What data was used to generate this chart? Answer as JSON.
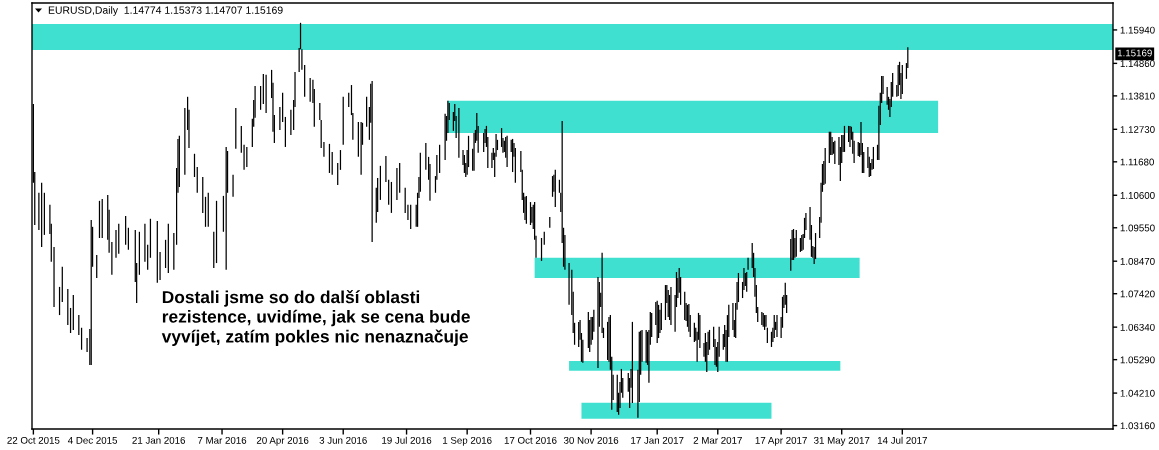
{
  "chart_data": {
    "type": "bar",
    "title": "EURUSD,Daily  1.14774 1.15373 1.14707 1.15169",
    "annotations": [
      "Dostali jsme so do další oblasti\nrezistence, uvidíme, jak se cena bude\nvyvíjet, zatím pokles nic nenaznačuje",
      {
        "text": "1.15169",
        "y": 1.15169
      }
    ],
    "x": [
      "2015-10-22",
      "2015-10-23",
      "2015-10-26",
      "2015-10-28",
      "2015-10-30",
      "2015-11-03",
      "2015-11-04",
      "2015-11-06",
      "2015-11-10",
      "2015-11-12",
      "2015-11-16",
      "2015-11-18",
      "2015-11-20",
      "2015-11-24",
      "2015-11-26",
      "2015-11-30",
      "2015-12-02",
      "2015-12-03",
      "2015-12-04",
      "2015-12-07",
      "2015-12-09",
      "2015-12-11",
      "2015-12-15",
      "2015-12-16",
      "2015-12-18",
      "2015-12-21",
      "2015-12-23",
      "2015-12-28",
      "2015-12-30",
      "2016-01-04",
      "2016-01-05",
      "2016-01-07",
      "2016-01-11",
      "2016-01-13",
      "2016-01-15",
      "2016-01-20",
      "2016-01-22",
      "2016-01-26",
      "2016-01-28",
      "2016-02-01",
      "2016-02-03",
      "2016-02-04",
      "2016-02-05",
      "2016-02-09",
      "2016-02-11",
      "2016-02-12",
      "2016-02-16",
      "2016-02-18",
      "2016-02-22",
      "2016-02-24",
      "2016-02-26",
      "2016-03-01",
      "2016-03-03",
      "2016-03-08",
      "2016-03-10",
      "2016-03-11",
      "2016-03-15",
      "2016-03-17",
      "2016-03-21",
      "2016-03-23",
      "2016-03-25",
      "2016-03-29",
      "2016-03-30",
      "2016-03-31",
      "2016-04-04",
      "2016-04-06",
      "2016-04-08",
      "2016-04-12",
      "2016-04-13",
      "2016-04-14",
      "2016-04-18",
      "2016-04-20",
      "2016-04-22",
      "2016-04-26",
      "2016-04-28",
      "2016-04-29",
      "2016-05-02",
      "2016-05-03",
      "2016-05-04",
      "2016-05-06",
      "2016-05-10",
      "2016-05-12",
      "2016-05-13",
      "2016-05-17",
      "2016-05-18",
      "2016-05-20",
      "2016-05-24",
      "2016-05-26",
      "2016-05-30",
      "2016-06-01",
      "2016-06-03",
      "2016-06-07",
      "2016-06-09",
      "2016-06-10",
      "2016-06-14",
      "2016-06-16",
      "2016-06-17",
      "2016-06-20",
      "2016-06-22",
      "2016-06-23",
      "2016-06-24",
      "2016-06-27",
      "2016-06-28",
      "2016-06-30",
      "2016-07-04",
      "2016-07-06",
      "2016-07-08",
      "2016-07-12",
      "2016-07-14",
      "2016-07-18",
      "2016-07-20",
      "2016-07-22",
      "2016-07-26",
      "2016-07-27",
      "2016-07-28",
      "2016-07-29",
      "2016-08-02",
      "2016-08-04",
      "2016-08-05",
      "2016-08-09",
      "2016-08-10",
      "2016-08-12",
      "2016-08-16",
      "2016-08-17",
      "2016-08-18",
      "2016-08-19",
      "2016-08-22",
      "2016-08-23",
      "2016-08-24",
      "2016-08-26",
      "2016-08-29",
      "2016-08-30",
      "2016-08-31",
      "2016-09-01",
      "2016-09-02",
      "2016-09-05",
      "2016-09-06",
      "2016-09-07",
      "2016-09-08",
      "2016-09-09",
      "2016-09-13",
      "2016-09-14",
      "2016-09-15",
      "2016-09-16",
      "2016-09-19",
      "2016-09-20",
      "2016-09-21",
      "2016-09-22",
      "2016-09-23",
      "2016-09-26",
      "2016-09-27",
      "2016-09-28",
      "2016-09-29",
      "2016-09-30",
      "2016-10-03",
      "2016-10-04",
      "2016-10-05",
      "2016-10-06",
      "2016-10-10",
      "2016-10-11",
      "2016-10-12",
      "2016-10-13",
      "2016-10-14",
      "2016-10-17",
      "2016-10-18",
      "2016-10-19",
      "2016-10-20",
      "2016-10-21",
      "2016-10-25",
      "2016-10-27",
      "2016-10-31",
      "2016-11-02",
      "2016-11-03",
      "2016-11-04",
      "2016-11-07",
      "2016-11-08",
      "2016-11-09",
      "2016-11-10",
      "2016-11-11",
      "2016-11-14",
      "2016-11-16",
      "2016-11-17",
      "2016-11-18",
      "2016-11-21",
      "2016-11-22",
      "2016-11-23",
      "2016-11-24",
      "2016-11-28",
      "2016-11-29",
      "2016-11-30",
      "2016-12-01",
      "2016-12-02",
      "2016-12-05",
      "2016-12-06",
      "2016-12-07",
      "2016-12-08",
      "2016-12-09",
      "2016-12-12",
      "2016-12-13",
      "2016-12-14",
      "2016-12-15",
      "2016-12-16",
      "2016-12-19",
      "2016-12-20",
      "2016-12-21",
      "2016-12-22",
      "2016-12-23",
      "2016-12-27",
      "2016-12-28",
      "2016-12-29",
      "2016-12-30",
      "2017-01-03",
      "2017-01-04",
      "2017-01-05",
      "2017-01-06",
      "2017-01-09",
      "2017-01-10",
      "2017-01-11",
      "2017-01-12",
      "2017-01-13",
      "2017-01-16",
      "2017-01-17",
      "2017-01-18",
      "2017-01-19",
      "2017-01-20",
      "2017-01-23",
      "2017-01-24",
      "2017-01-25",
      "2017-01-26",
      "2017-01-27",
      "2017-01-30",
      "2017-01-31",
      "2017-02-01",
      "2017-02-02",
      "2017-02-03",
      "2017-02-06",
      "2017-02-07",
      "2017-02-08",
      "2017-02-09",
      "2017-02-10",
      "2017-02-13",
      "2017-02-14",
      "2017-02-15",
      "2017-02-16",
      "2017-02-17",
      "2017-02-20",
      "2017-02-21",
      "2017-02-22",
      "2017-02-23",
      "2017-02-24",
      "2017-02-27",
      "2017-02-28",
      "2017-03-01",
      "2017-03-02",
      "2017-03-03",
      "2017-03-06",
      "2017-03-07",
      "2017-03-08",
      "2017-03-09",
      "2017-03-10",
      "2017-03-13",
      "2017-03-14",
      "2017-03-15",
      "2017-03-16",
      "2017-03-17",
      "2017-03-20",
      "2017-03-21",
      "2017-03-22",
      "2017-03-23",
      "2017-03-24",
      "2017-03-27",
      "2017-03-28",
      "2017-03-29",
      "2017-03-30",
      "2017-03-31",
      "2017-04-03",
      "2017-04-04",
      "2017-04-05",
      "2017-04-06",
      "2017-04-07",
      "2017-04-10",
      "2017-04-11",
      "2017-04-12",
      "2017-04-13",
      "2017-04-14",
      "2017-04-17",
      "2017-04-18",
      "2017-04-19",
      "2017-04-20",
      "2017-04-21",
      "2017-04-24",
      "2017-04-25",
      "2017-04-26",
      "2017-04-27",
      "2017-04-28",
      "2017-05-01",
      "2017-05-02",
      "2017-05-03",
      "2017-05-04",
      "2017-05-05",
      "2017-05-08",
      "2017-05-09",
      "2017-05-10",
      "2017-05-11",
      "2017-05-12",
      "2017-05-15",
      "2017-05-16",
      "2017-05-17",
      "2017-05-18",
      "2017-05-19",
      "2017-05-22",
      "2017-05-23",
      "2017-05-24",
      "2017-05-25",
      "2017-05-26",
      "2017-05-29",
      "2017-05-30",
      "2017-05-31",
      "2017-06-01",
      "2017-06-02",
      "2017-06-05",
      "2017-06-06",
      "2017-06-07",
      "2017-06-08",
      "2017-06-09",
      "2017-06-12",
      "2017-06-13",
      "2017-06-14",
      "2017-06-15",
      "2017-06-16",
      "2017-06-19",
      "2017-06-20",
      "2017-06-21",
      "2017-06-22",
      "2017-06-23",
      "2017-06-26",
      "2017-06-27",
      "2017-06-28",
      "2017-06-29",
      "2017-06-30",
      "2017-07-03",
      "2017-07-04",
      "2017-07-05",
      "2017-07-06",
      "2017-07-07",
      "2017-07-10",
      "2017-07-11",
      "2017-07-12",
      "2017-07-13",
      "2017-07-14",
      "2017-07-17",
      "2017-07-18"
    ],
    "base": [
      1.11,
      1.0964,
      1.0948,
      1.0893,
      1.0932,
      1.0935,
      1.0845,
      1.0699,
      1.0673,
      1.0715,
      1.0641,
      1.0615,
      1.0625,
      1.0609,
      1.0561,
      1.0554,
      1.0512,
      1.0512,
      1.0829,
      1.0793,
      1.0922,
      1.0922,
      1.0916,
      1.0874,
      1.0803,
      1.0858,
      1.0871,
      1.09,
      1.0884,
      1.078,
      1.0712,
      1.0803,
      1.0845,
      1.0819,
      1.0858,
      1.0777,
      1.0786,
      1.0825,
      1.0809,
      1.0819,
      1.09,
      1.1068,
      1.1087,
      1.1126,
      1.1271,
      1.1213,
      1.1119,
      1.1068,
      1.1003,
      1.0958,
      1.0958,
      1.0825,
      1.0841,
      1.0942,
      1.0819,
      1.1068,
      1.1055,
      1.121,
      1.1197,
      1.1142,
      1.1151,
      1.1216,
      1.1281,
      1.131,
      1.1336,
      1.1355,
      1.1326,
      1.1374,
      1.1265,
      1.1229,
      1.1271,
      1.1297,
      1.1216,
      1.1255,
      1.1271,
      1.1345,
      1.1458,
      1.1532,
      1.1465,
      1.1378,
      1.1362,
      1.1358,
      1.1281,
      1.1303,
      1.1213,
      1.1184,
      1.1132,
      1.1126,
      1.1093,
      1.1142,
      1.1223,
      1.1345,
      1.1319,
      1.1239,
      1.1184,
      1.1126,
      1.1223,
      1.1281,
      1.1239,
      1.1294,
      1.0909,
      1.0971,
      1.1006,
      1.1045,
      1.1103,
      1.1029,
      1.1003,
      1.1045,
      1.1068,
      1.1003,
      1.098,
      1.0951,
      1.0958,
      1.0958,
      1.1051,
      1.1071,
      1.1142,
      1.111,
      1.1042,
      1.1068,
      1.111,
      1.1132,
      1.1174,
      1.1236,
      1.1261,
      1.1303,
      1.1268,
      1.13,
      1.1245,
      1.1181,
      1.1158,
      1.1132,
      1.1119,
      1.1126,
      1.1151,
      1.1139,
      1.1139,
      1.1229,
      1.1236,
      1.1197,
      1.12,
      1.1229,
      1.1216,
      1.1148,
      1.1148,
      1.1174,
      1.1119,
      1.1184,
      1.1206,
      1.1216,
      1.1197,
      1.12,
      1.1181,
      1.1151,
      1.12,
      1.1135,
      1.1184,
      1.11,
      1.1135,
      1.1045,
      1.1003,
      1.098,
      1.0968,
      1.0964,
      1.0971,
      1.0951,
      1.0916,
      1.0858,
      1.0848,
      1.09,
      1.0955,
      1.1055,
      1.1071,
      1.1022,
      1.1068,
      1.1006,
      1.0906,
      1.0829,
      1.0819,
      1.0706,
      1.0673,
      1.0615,
      1.0577,
      1.057,
      1.0593,
      1.0522,
      1.0519,
      1.0567,
      1.0554,
      1.0577,
      1.0593,
      1.0619,
      1.0502,
      1.0635,
      1.0699,
      1.0615,
      1.0599,
      1.0528,
      1.0522,
      1.0496,
      1.0367,
      1.0399,
      1.036,
      1.0351,
      1.0373,
      1.0422,
      1.0406,
      1.0425,
      1.0373,
      1.0438,
      1.0389,
      1.0341,
      1.0392,
      1.048,
      1.0522,
      1.0519,
      1.0512,
      1.0454,
      1.0577,
      1.0602,
      1.0641,
      1.0583,
      1.0599,
      1.0615,
      1.0625,
      1.0657,
      1.0712,
      1.0667,
      1.0657,
      1.0641,
      1.0619,
      1.0699,
      1.0728,
      1.0745,
      1.0706,
      1.0657,
      1.0654,
      1.0635,
      1.0619,
      1.0602,
      1.0586,
      1.059,
      1.0522,
      1.0593,
      1.0567,
      1.0538,
      1.0522,
      1.0489,
      1.0544,
      1.0561,
      1.057,
      1.0512,
      1.0506,
      1.0489,
      1.0538,
      1.0561,
      1.057,
      1.0522,
      1.0522,
      1.0602,
      1.0625,
      1.0602,
      1.0599,
      1.069,
      1.0715,
      1.0728,
      1.0754,
      1.0767,
      1.0748,
      1.0819,
      1.0825,
      1.0796,
      1.0732,
      1.068,
      1.0651,
      1.0641,
      1.0635,
      1.0625,
      1.0635,
      1.0583,
      1.057,
      1.0586,
      1.0599,
      1.0625,
      1.0602,
      1.0599,
      1.0632,
      1.0696,
      1.0706,
      1.068,
      1.0816,
      1.0851,
      1.0851,
      1.0858,
      1.0861,
      1.0877,
      1.088,
      1.0884,
      1.0922,
      1.0948,
      1.0916,
      1.0861,
      1.0858,
      1.0838,
      1.0854,
      1.0922,
      1.0971,
      1.1071,
      1.1093,
      1.1097,
      1.1164,
      1.119,
      1.119,
      1.1194,
      1.1161,
      1.1158,
      1.1106,
      1.1164,
      1.12,
      1.12,
      1.1232,
      1.1216,
      1.1239,
      1.1194,
      1.1164,
      1.1187,
      1.1184,
      1.119,
      1.1132,
      1.1132,
      1.1148,
      1.1119,
      1.1122,
      1.1142,
      1.1145,
      1.1174,
      1.1174,
      1.1287,
      1.1358,
      1.1387,
      1.1352,
      1.1336,
      1.1313,
      1.1345,
      1.1378,
      1.1378,
      1.1381,
      1.1416,
      1.1371,
      1.1387,
      1.1436,
      1.1471
    ],
    "values": [
      0.0255,
      0.0171,
      0.012,
      0.0207,
      0.0136,
      0.0094,
      0.0123,
      0.0194,
      0.0091,
      0.0114,
      0.0116,
      0.0081,
      0.0113,
      0.0064,
      0.0071,
      0.0045,
      0.0116,
      0.0468,
      0.0129,
      0.0074,
      0.012,
      0.0126,
      0.0145,
      0.0139,
      0.0106,
      0.009,
      0.0097,
      0.0093,
      0.0071,
      0.0168,
      0.0129,
      0.0139,
      0.0123,
      0.0081,
      0.0126,
      0.02,
      0.0091,
      0.0091,
      0.0159,
      0.0119,
      0.0248,
      0.0174,
      0.0165,
      0.0216,
      0.0107,
      0.0123,
      0.0075,
      0.0083,
      0.0116,
      0.0097,
      0.011,
      0.0117,
      0.0201,
      0.0116,
      0.0397,
      0.0135,
      0.0071,
      0.0132,
      0.0087,
      0.0081,
      0.0065,
      0.0091,
      0.0087,
      0.0103,
      0.0077,
      0.0097,
      0.0123,
      0.0091,
      0.0158,
      0.009,
      0.0074,
      0.0094,
      0.0097,
      0.0081,
      0.0097,
      0.0113,
      0.0078,
      0.0085,
      0.0067,
      0.0103,
      0.0077,
      0.0075,
      0.0122,
      0.0055,
      0.009,
      0.0048,
      0.0094,
      0.0074,
      0.0071,
      0.0064,
      0.0155,
      0.0046,
      0.0097,
      0.0087,
      0.0113,
      0.0171,
      0.0071,
      0.0097,
      0.0106,
      0.0126,
      0.052,
      0.0113,
      0.011,
      0.011,
      0.0084,
      0.0081,
      0.01,
      0.0103,
      0.0096,
      0.0081,
      0.0049,
      0.0078,
      0.0071,
      0.011,
      0.0068,
      0.0126,
      0.0087,
      0.0074,
      0.0119,
      0.0054,
      0.008,
      0.0091,
      0.0149,
      0.008,
      0.0104,
      0.0055,
      0.0061,
      0.0055,
      0.0071,
      0.0161,
      0.0048,
      0.0058,
      0.0045,
      0.008,
      0.0101,
      0.0071,
      0.0122,
      0.0042,
      0.009,
      0.0087,
      0.0061,
      0.0045,
      0.0068,
      0.01,
      0.0049,
      0.0039,
      0.0078,
      0.0074,
      0.0033,
      0.0061,
      0.0048,
      0.0036,
      0.0067,
      0.0101,
      0.0039,
      0.0107,
      0.0045,
      0.0113,
      0.0068,
      0.0097,
      0.0065,
      0.0075,
      0.009,
      0.0074,
      0.0051,
      0.0078,
      0.0122,
      0.0071,
      0.0074,
      0.0042,
      0.0035,
      0.0067,
      0.0055,
      0.012,
      0.0042,
      0.0062,
      0.0394,
      0.0126,
      0.0113,
      0.0135,
      0.0146,
      0.0133,
      0.0071,
      0.0081,
      0.0064,
      0.0093,
      0.0074,
      0.0116,
      0.0103,
      0.009,
      0.0074,
      0.0071,
      0.0294,
      0.0145,
      0.0046,
      0.0259,
      0.0033,
      0.0123,
      0.0145,
      0.0177,
      0.0171,
      0.0081,
      0.012,
      0.0071,
      0.0084,
      0.0077,
      0.0064,
      0.0061,
      0.0097,
      0.0061,
      0.0262,
      0.0155,
      0.0227,
      0.0142,
      0.0103,
      0.0106,
      0.0107,
      0.0171,
      0.0106,
      0.0078,
      0.0074,
      0.0136,
      0.0107,
      0.0075,
      0.0087,
      0.0113,
      0.0058,
      0.0087,
      0.0081,
      0.0123,
      0.0119,
      0.0113,
      0.0065,
      0.008,
      0.009,
      0.0091,
      0.0058,
      0.0071,
      0.009,
      0.0071,
      0.0062,
      0.0042,
      0.0097,
      0.0087,
      0.0106,
      0.0045,
      0.0093,
      0.0097,
      0.0075,
      0.0064,
      0.0065,
      0.0084,
      0.0064,
      0.0097,
      0.0097,
      0.0051,
      0.0071,
      0.0103,
      0.0151,
      0.0104,
      0.0087,
      0.0055,
      0.0113,
      0.009,
      0.0094,
      0.0052,
      0.0071,
      0.0042,
      0.0064,
      0.0039,
      0.0081,
      0.0078,
      0.0093,
      0.009,
      0.0048,
      0.0042,
      0.0045,
      0.0048,
      0.0038,
      0.0049,
      0.0049,
      0.0046,
      0.0074,
      0.0026,
      0.0071,
      0.0068,
      0.01,
      0.0042,
      0.0071,
      0.0058,
      0.0103,
      0.0097,
      0.01,
      0.0064,
      0.0087,
      0.0045,
      0.0052,
      0.0051,
      0.0065,
      0.0055,
      0.0106,
      0.0103,
      0.0038,
      0.0055,
      0.0084,
      0.0068,
      0.0129,
      0.009,
      0.0078,
      0.0116,
      0.0101,
      0.0075,
      0.0058,
      0.0038,
      0.0075,
      0.009,
      0.011,
      0.0091,
      0.0055,
      0.0084,
      0.0052,
      0.0068,
      0.0042,
      0.0071,
      0.0072,
      0.0045,
      0.0045,
      0.0107,
      0.0097,
      0.0068,
      0.0068,
      0.0065,
      0.0042,
      0.0035,
      0.0071,
      0.0049,
      0.0175,
      0.0104,
      0.0087,
      0.0058,
      0.0058,
      0.0042,
      0.0058,
      0.0081,
      0.0077,
      0.0038,
      0.01,
      0.0075,
      0.0084,
      0.0094,
      0.0051,
      0.0067
    ],
    "series": [
      {
        "type": "line",
        "color": "#40e0d0",
        "x": [
          "2015-10-21",
          "2017-12-14"
        ],
        "values": [
          null,
          null
        ],
        "lower": [
          1.1529,
          1.1529
        ],
        "upper": [
          1.1613,
          1.1613
        ]
      },
      {
        "type": "line",
        "color": "#40e0d0",
        "x": [
          "2016-08-18",
          "2017-08-09"
        ],
        "values": [
          null,
          null
        ],
        "lower": [
          1.1261,
          1.1261
        ],
        "upper": [
          1.1365,
          1.1365
        ]
      },
      {
        "type": "line",
        "color": "#40e0d0",
        "x": [
          "2016-10-20",
          "2017-06-13"
        ],
        "values": [
          null,
          null
        ],
        "lower": [
          1.0793,
          1.0793
        ],
        "upper": [
          1.0858,
          1.0858
        ]
      },
      {
        "type": "line",
        "color": "#40e0d0",
        "x": [
          "2016-11-14",
          "2017-05-30"
        ],
        "values": [
          null,
          null
        ],
        "lower": [
          1.0493,
          1.0493
        ],
        "upper": [
          1.0525,
          1.0525
        ]
      },
      {
        "type": "line",
        "color": "#40e0d0",
        "x": [
          "2016-11-23",
          "2017-04-10"
        ],
        "values": [
          null,
          null
        ],
        "lower": [
          1.0338,
          1.0338
        ],
        "upper": [
          1.039,
          1.039
        ]
      }
    ],
    "xlim": [
      "2015-10-21",
      "2017-12-14"
    ],
    "ylim": [
      1.0305,
      1.1681
    ],
    "xticks": [
      {
        "value": "2015-10-22",
        "label": "22 Oct 2015"
      },
      {
        "value": "2015-12-04",
        "label": "4 Dec 2015"
      },
      {
        "value": "2016-01-21",
        "label": "21 Jan 2016"
      },
      {
        "value": "2016-03-07",
        "label": "7 Mar 2016"
      },
      {
        "value": "2016-04-20",
        "label": "20 Apr 2016"
      },
      {
        "value": "2016-06-03",
        "label": "3 Jun 2016"
      },
      {
        "value": "2016-07-19",
        "label": "19 Jul 2016"
      },
      {
        "value": "2016-09-01",
        "label": "1 Sep 2016"
      },
      {
        "value": "2016-10-17",
        "label": "17 Oct 2016"
      },
      {
        "value": "2016-11-30",
        "label": "30 Nov 2016"
      },
      {
        "value": "2017-01-17",
        "label": "17 Jan 2017"
      },
      {
        "value": "2017-03-02",
        "label": "2 Mar 2017"
      },
      {
        "value": "2017-04-17",
        "label": "17 Apr 2017"
      },
      {
        "value": "2017-05-31",
        "label": "31 May 2017"
      },
      {
        "value": "2017-07-14",
        "label": "14 Jul 2017"
      }
    ],
    "yticks": [
      {
        "value": 1.1594,
        "label": "1.15940"
      },
      {
        "value": 1.1486,
        "label": "1.14860"
      },
      {
        "value": 1.1381,
        "label": "1.13810"
      },
      {
        "value": 1.1273,
        "label": "1.12730"
      },
      {
        "value": 1.1168,
        "label": "1.11680"
      },
      {
        "value": 1.106,
        "label": "1.10600"
      },
      {
        "value": 1.0955,
        "label": "1.09550"
      },
      {
        "value": 1.0847,
        "label": "1.08470"
      },
      {
        "value": 1.0742,
        "label": "1.07420"
      },
      {
        "value": 1.0634,
        "label": "1.06340"
      },
      {
        "value": 1.0529,
        "label": "1.05290"
      },
      {
        "value": 1.0421,
        "label": "1.04210"
      },
      {
        "value": 1.0316,
        "label": "1.03160"
      }
    ]
  }
}
